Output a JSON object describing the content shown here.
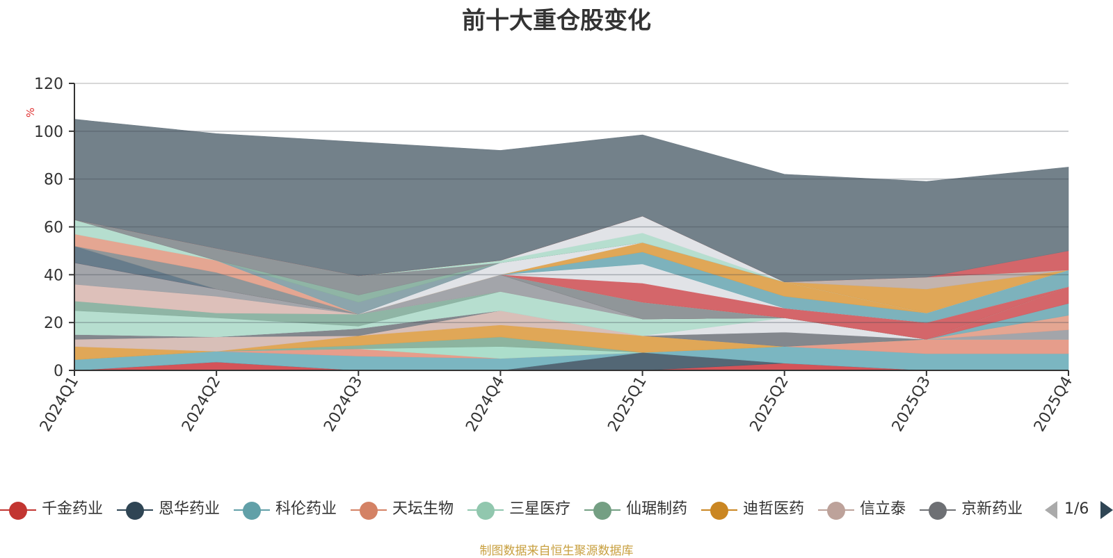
{
  "chart_data": {
    "type": "area",
    "title": "前十大重仓股变化",
    "ylabel": "%",
    "ylim": [
      0,
      120
    ],
    "yticks": [
      0,
      20,
      40,
      60,
      80,
      100,
      120
    ],
    "categories": [
      "2024Q1",
      "2024Q2",
      "2024Q3",
      "2024Q4",
      "2025Q1",
      "2025Q2",
      "2025Q3",
      "2025Q4"
    ],
    "series": [
      {
        "name": "千金药业",
        "color": "#d24a4f",
        "values": [
          0,
          3.5,
          0,
          0,
          0,
          3,
          0,
          0
        ]
      },
      {
        "name": "恩华药业",
        "color": "#4a5f6e",
        "values": [
          0,
          0,
          0,
          0,
          7.5,
          0,
          0,
          0
        ]
      },
      {
        "name": "科伦药业",
        "color": "#74b2be",
        "values": [
          4.5,
          4.5,
          6,
          5,
          0,
          7,
          7,
          7
        ]
      },
      {
        "name": "天坛生物",
        "color": "#e59885",
        "values": [
          0,
          0,
          3,
          0,
          0,
          0,
          6,
          6
        ]
      },
      {
        "name": "三星医疗",
        "color": "#a8dcc8",
        "values": [
          0,
          0,
          0,
          5,
          0,
          0,
          0,
          0
        ]
      },
      {
        "name": "仙琚制药",
        "color": "#86b09a",
        "values": [
          0,
          0,
          1.5,
          4,
          0,
          0,
          0,
          0
        ]
      },
      {
        "name": "迪哲医药",
        "color": "#dea24e",
        "values": [
          5.5,
          0,
          4,
          5,
          7,
          0,
          0,
          0
        ]
      },
      {
        "name": "信立泰",
        "color": "#d6bcb4",
        "values": [
          3,
          6,
          0,
          6,
          0,
          0,
          0,
          0
        ]
      },
      {
        "name": "京新药业",
        "color": "#7c8187",
        "values": [
          2,
          0,
          3,
          0,
          0,
          6,
          0,
          0
        ]
      },
      {
        "name": "",
        "color": "#dfe1e6",
        "values": [
          0,
          0,
          0,
          0,
          0,
          6,
          0,
          0
        ]
      },
      {
        "name": "",
        "color": "#b2dccc",
        "values": [
          10,
          8,
          1,
          8,
          7,
          0,
          0,
          0
        ]
      },
      {
        "name": "",
        "color": "#89b1a0",
        "values": [
          4,
          2,
          5,
          0,
          0,
          0,
          0,
          0
        ]
      },
      {
        "name": "",
        "color": "#dbbdb6",
        "values": [
          7,
          7,
          0,
          0,
          0,
          0,
          0,
          0
        ]
      },
      {
        "name": "",
        "color": "#9ea0a5",
        "values": [
          9,
          3,
          0,
          7,
          0,
          0,
          0,
          4
        ]
      },
      {
        "name": "",
        "color": "#e3a18c",
        "values": [
          0,
          0,
          0,
          0,
          0,
          0,
          0,
          6
        ]
      },
      {
        "name": "",
        "color": "#76aeb8",
        "values": [
          0,
          0,
          0,
          0,
          0,
          0,
          0,
          5
        ]
      },
      {
        "name": "",
        "color": "#d25e62",
        "values": [
          0,
          0,
          0,
          0,
          0,
          0,
          0,
          7
        ]
      },
      {
        "name": "",
        "color": "#5f7585",
        "values": [
          7,
          0,
          0,
          0,
          0,
          0,
          0,
          0
        ]
      },
      {
        "name": "",
        "color": "#8a9093",
        "values": [
          0,
          7,
          0,
          0,
          7,
          0,
          0,
          0
        ]
      },
      {
        "name": "",
        "color": "#e3a18c",
        "values": [
          5,
          5,
          0,
          0,
          0,
          0,
          0,
          0
        ]
      },
      {
        "name": "",
        "color": "#b2dccc",
        "values": [
          6,
          0,
          0,
          0,
          0,
          0,
          0,
          0
        ]
      },
      {
        "name": "",
        "color": "#d25e62",
        "values": [
          0,
          0,
          0,
          0,
          8,
          4,
          7,
          0
        ]
      },
      {
        "name": "",
        "color": "#dfe1e6",
        "values": [
          0,
          0,
          0,
          0,
          8,
          0,
          0,
          0
        ]
      },
      {
        "name": "",
        "color": "#76aeb8",
        "values": [
          0,
          0,
          0,
          0,
          5,
          5,
          4,
          7
        ]
      },
      {
        "name": "",
        "color": "#dea24e",
        "values": [
          0,
          0,
          0,
          0,
          4,
          6,
          0,
          0
        ]
      },
      {
        "name": "",
        "color": "#dfe1e6",
        "values": [
          0,
          0,
          0,
          5,
          0,
          0,
          0,
          0
        ]
      },
      {
        "name": "",
        "color": "#86a0a8",
        "values": [
          0,
          0,
          5,
          0,
          0,
          0,
          0,
          0
        ]
      },
      {
        "name": "",
        "color": "#89b1a0",
        "values": [
          0,
          0,
          3,
          0,
          0,
          0,
          0,
          0
        ]
      },
      {
        "name": "",
        "color": "#8a9093",
        "values": [
          0,
          5,
          8,
          0,
          0,
          0,
          0,
          0
        ]
      },
      {
        "name": "",
        "color": "#b2dccc",
        "values": [
          0,
          0,
          0,
          1,
          4,
          0,
          0,
          0
        ]
      },
      {
        "name": "",
        "color": "#dfe1e6",
        "values": [
          0,
          0,
          0,
          0,
          7,
          0,
          0,
          0
        ]
      },
      {
        "name": "",
        "color": "#dea24e",
        "values": [
          0,
          0,
          0,
          0,
          0,
          0,
          10,
          0
        ]
      },
      {
        "name": "",
        "color": "#c0b0aa",
        "values": [
          0,
          0,
          0,
          0,
          0,
          0,
          5,
          0
        ]
      },
      {
        "name": "",
        "color": "#d25e62",
        "values": [
          0,
          0,
          0,
          0,
          0,
          0,
          0,
          8
        ]
      },
      {
        "name": "",
        "color": "#6c7a84",
        "values": [
          42,
          48,
          56,
          46,
          34,
          45,
          40,
          35
        ]
      }
    ],
    "legend_position": "bottom",
    "grid": true
  },
  "legend": {
    "items": [
      {
        "label": "千金药业",
        "color": "#c23531"
      },
      {
        "label": "恩华药业",
        "color": "#2f4554"
      },
      {
        "label": "科伦药业",
        "color": "#61a0a8"
      },
      {
        "label": "天坛生物",
        "color": "#d48265"
      },
      {
        "label": "三星医疗",
        "color": "#91c7ae"
      },
      {
        "label": "仙琚制药",
        "color": "#749f83"
      },
      {
        "label": "迪哲医药",
        "color": "#ca8622"
      },
      {
        "label": "信立泰",
        "color": "#bda29a"
      },
      {
        "label": "京新药业",
        "color": "#6e7074"
      }
    ],
    "page": "1/6"
  },
  "source": "制图数据来自恒生聚源数据库"
}
